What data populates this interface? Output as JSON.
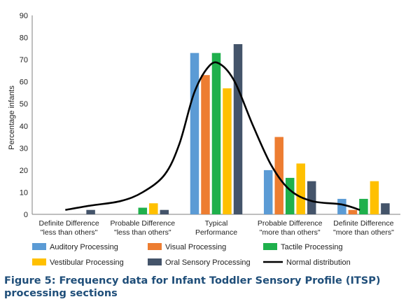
{
  "chart_data": {
    "type": "bar",
    "ylabel": "Percentage infants",
    "ylim": [
      0,
      90
    ],
    "yticks": [
      0,
      10,
      20,
      30,
      40,
      50,
      60,
      70,
      80,
      90
    ],
    "grid": false,
    "legend_position": "bottom",
    "categories": [
      [
        "Definite Difference",
        "\"less than others\""
      ],
      [
        "Probable Difference",
        "\"less than others\""
      ],
      [
        "Typical",
        "Performance"
      ],
      [
        "Probable Difference",
        "\"more than others\""
      ],
      [
        "Definite Difference",
        "\"more than others\""
      ]
    ],
    "series": [
      {
        "name": "Auditory Processing",
        "color": "#5b9bd5",
        "values": [
          0,
          0,
          73,
          20,
          7
        ]
      },
      {
        "name": "Visual Processing",
        "color": "#ed7d31",
        "values": [
          0,
          0,
          63,
          35,
          2
        ]
      },
      {
        "name": "Tactile Processing",
        "color": "#1fb04c",
        "values": [
          0,
          3,
          73,
          16.5,
          7
        ]
      },
      {
        "name": "Vestibular Processing",
        "color": "#ffc000",
        "values": [
          0,
          5,
          57,
          23,
          15
        ]
      },
      {
        "name": "Oral Sensory Processing",
        "color": "#44546a",
        "values": [
          2,
          2,
          77,
          15,
          5
        ]
      }
    ],
    "line": {
      "name": "Normal distribution",
      "color": "#000000",
      "points": [
        [
          0.45,
          2
        ],
        [
          0.8,
          4
        ],
        [
          1.2,
          6
        ],
        [
          1.5,
          10
        ],
        [
          1.8,
          18
        ],
        [
          2.0,
          32
        ],
        [
          2.2,
          55
        ],
        [
          2.4,
          67
        ],
        [
          2.55,
          68
        ],
        [
          2.75,
          60
        ],
        [
          3.0,
          40
        ],
        [
          3.25,
          22
        ],
        [
          3.5,
          11
        ],
        [
          3.8,
          6
        ],
        [
          4.2,
          4.5
        ],
        [
          4.45,
          2
        ]
      ]
    }
  },
  "caption": {
    "line1": "Figure 5: Frequency data for Infant Toddler Sensory Profile (ITSP)",
    "line2": "processing sections"
  }
}
